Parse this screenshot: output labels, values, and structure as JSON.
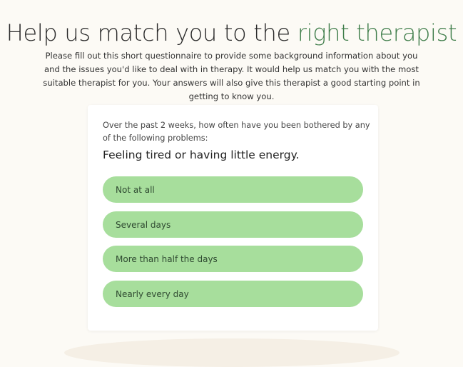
{
  "header": {
    "title_prefix": "Help us match you to the ",
    "title_accent": "right therapist"
  },
  "intro": "Please fill out this short questionnaire to provide some background information about you and the issues you'd like to deal with in therapy. It would help us match you with the most suitable therapist for you. Your answers will also give this therapist a good starting point in getting to know you.",
  "questionnaire": {
    "prompt": "Over the past 2 weeks, how often have you been bothered by any of the following problems:",
    "question": "Feeling tired or having little energy.",
    "options": [
      {
        "label": "Not at all"
      },
      {
        "label": "Several days"
      },
      {
        "label": "More than half the days"
      },
      {
        "label": "Nearly every day"
      }
    ]
  },
  "colors": {
    "accent": "#3f7d4a",
    "option_bg": "#a7de9c",
    "background": "#fcfaf5"
  }
}
